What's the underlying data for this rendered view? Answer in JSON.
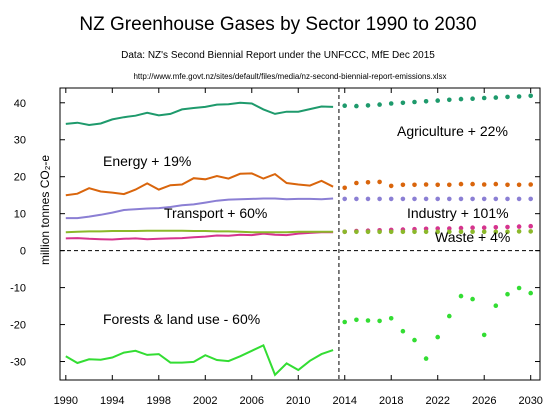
{
  "chart_data": {
    "type": "line",
    "title": "NZ Greenhouse Gases by Sector 1990 to 2030",
    "subtitle": "Data: NZ's Second Biennial Report under the UNFCCC, MfE Dec 2015",
    "source_url": "http://www.mfe.govt.nz/sites/default/files/media/nz-second-biennial-report-emissions.xlsx",
    "ylabel": "million tonnes CO₂-e",
    "xlabel": "",
    "ylim": [
      -35,
      44
    ],
    "xlim": [
      1989.5,
      2030.8
    ],
    "y_ticks": [
      40,
      30,
      20,
      10,
      0,
      -10,
      -20,
      -30
    ],
    "x_ticks": [
      1990,
      1994,
      1998,
      2002,
      2006,
      2010,
      2014,
      2018,
      2022,
      2026,
      2030
    ],
    "grid": false,
    "divider_year": 2013.5,
    "series": [
      {
        "name": "Agriculture + 22%",
        "color": "#1e9a6c",
        "hist_x": [
          1990,
          1991,
          1992,
          1993,
          1994,
          1995,
          1996,
          1997,
          1998,
          1999,
          2000,
          2001,
          2002,
          2003,
          2004,
          2005,
          2006,
          2007,
          2008,
          2009,
          2010,
          2011,
          2012,
          2013
        ],
        "hist_y": [
          34.3,
          34.6,
          34.0,
          34.4,
          35.5,
          36.1,
          36.5,
          37.3,
          36.6,
          37.0,
          38.2,
          38.6,
          38.9,
          39.5,
          39.6,
          40.0,
          39.8,
          38.2,
          37.0,
          37.6,
          37.6,
          38.3,
          39.0,
          38.9
        ],
        "proj_x": [
          2014,
          2015,
          2016,
          2017,
          2018,
          2019,
          2020,
          2021,
          2022,
          2023,
          2024,
          2025,
          2026,
          2027,
          2028,
          2029,
          2030
        ],
        "proj_y": [
          39.2,
          39.1,
          39.3,
          39.5,
          39.8,
          40.0,
          40.2,
          40.4,
          40.6,
          40.8,
          41.0,
          41.1,
          41.3,
          41.4,
          41.6,
          41.7,
          41.9
        ]
      },
      {
        "name": "Energy + 19%",
        "color": "#d9650c",
        "hist_x": [
          1990,
          1991,
          1992,
          1993,
          1994,
          1995,
          1996,
          1997,
          1998,
          1999,
          2000,
          2001,
          2002,
          2003,
          2004,
          2005,
          2006,
          2007,
          2008,
          2009,
          2010,
          2011,
          2012,
          2013
        ],
        "hist_y": [
          15.0,
          15.4,
          16.9,
          16.0,
          15.7,
          15.3,
          16.5,
          18.2,
          16.5,
          17.7,
          17.9,
          19.6,
          19.3,
          20.2,
          19.5,
          20.8,
          20.9,
          19.5,
          20.7,
          18.3,
          17.9,
          17.6,
          18.9,
          17.3
        ],
        "proj_x": [
          2014,
          2015,
          2016,
          2017,
          2018,
          2019,
          2020,
          2021,
          2022,
          2023,
          2024,
          2025,
          2026,
          2027,
          2028,
          2029,
          2030
        ],
        "proj_y": [
          17.0,
          18.3,
          18.5,
          18.6,
          17.5,
          17.8,
          17.8,
          17.9,
          17.8,
          17.8,
          18.0,
          18.0,
          17.9,
          18.0,
          17.8,
          17.8,
          17.9
        ]
      },
      {
        "name": "Transport + 60%",
        "color": "#8b7fd4",
        "hist_x": [
          1990,
          1991,
          1992,
          1993,
          1994,
          1995,
          1996,
          1997,
          1998,
          1999,
          2000,
          2001,
          2002,
          2003,
          2004,
          2005,
          2006,
          2007,
          2008,
          2009,
          2010,
          2011,
          2012,
          2013
        ],
        "hist_y": [
          8.8,
          8.8,
          9.2,
          9.7,
          10.3,
          11.0,
          11.2,
          11.4,
          11.5,
          11.8,
          12.3,
          12.5,
          13.0,
          13.5,
          13.8,
          13.9,
          14.0,
          14.1,
          14.1,
          13.9,
          14.0,
          14.0,
          13.9,
          14.1
        ],
        "proj_x": [
          2014,
          2015,
          2016,
          2017,
          2018,
          2019,
          2020,
          2021,
          2022,
          2023,
          2024,
          2025,
          2026,
          2027,
          2028,
          2029,
          2030
        ],
        "proj_y": [
          14.0,
          14.0,
          14.0,
          14.0,
          14.0,
          14.0,
          14.0,
          14.0,
          14.0,
          14.0,
          14.0,
          14.0,
          14.0,
          14.0,
          14.0,
          14.0,
          14.0
        ]
      },
      {
        "name": "Industry + 101%",
        "color": "#d6338f",
        "hist_x": [
          1990,
          1991,
          1992,
          1993,
          1994,
          1995,
          1996,
          1997,
          1998,
          1999,
          2000,
          2001,
          2002,
          2003,
          2004,
          2005,
          2006,
          2007,
          2008,
          2009,
          2010,
          2011,
          2012,
          2013
        ],
        "hist_y": [
          3.3,
          3.4,
          3.2,
          3.1,
          3.0,
          3.2,
          3.3,
          3.1,
          3.2,
          3.3,
          3.4,
          3.6,
          3.8,
          4.1,
          4.0,
          4.3,
          4.2,
          4.6,
          4.3,
          4.2,
          4.6,
          4.8,
          5.0,
          5.0
        ],
        "proj_x": [
          2014,
          2015,
          2016,
          2017,
          2018,
          2019,
          2020,
          2021,
          2022,
          2023,
          2024,
          2025,
          2026,
          2027,
          2028,
          2029,
          2030
        ],
        "proj_y": [
          5.1,
          5.3,
          5.4,
          5.5,
          5.6,
          5.7,
          5.8,
          5.9,
          6.0,
          6.0,
          6.1,
          6.2,
          6.2,
          6.3,
          6.4,
          6.5,
          6.6
        ]
      },
      {
        "name": "Waste + 4%",
        "color": "#8bb82a",
        "hist_x": [
          1990,
          1991,
          1992,
          1993,
          1994,
          1995,
          1996,
          1997,
          1998,
          1999,
          2000,
          2001,
          2002,
          2003,
          2004,
          2005,
          2006,
          2007,
          2008,
          2009,
          2010,
          2011,
          2012,
          2013
        ],
        "hist_y": [
          5.0,
          5.1,
          5.2,
          5.2,
          5.3,
          5.3,
          5.3,
          5.4,
          5.4,
          5.4,
          5.4,
          5.3,
          5.3,
          5.2,
          5.2,
          5.1,
          5.0,
          5.0,
          5.0,
          5.0,
          5.1,
          5.1,
          5.1,
          5.1
        ],
        "proj_x": [
          2014,
          2015,
          2016,
          2017,
          2018,
          2019,
          2020,
          2021,
          2022,
          2023,
          2024,
          2025,
          2026,
          2027,
          2028,
          2029,
          2030
        ],
        "proj_y": [
          5.1,
          5.1,
          5.1,
          5.1,
          5.1,
          5.1,
          5.1,
          5.1,
          5.1,
          5.1,
          5.1,
          5.1,
          5.1,
          5.1,
          5.1,
          5.2,
          5.2
        ]
      },
      {
        "name": "Forests & land use - 60%",
        "color": "#33dd33",
        "hist_x": [
          1990,
          1991,
          1992,
          1993,
          1994,
          1995,
          1996,
          1997,
          1998,
          1999,
          2000,
          2001,
          2002,
          2003,
          2004,
          2005,
          2006,
          2007,
          2008,
          2009,
          2010,
          2011,
          2012,
          2013
        ],
        "hist_y": [
          -28.6,
          -30.4,
          -29.4,
          -29.5,
          -28.9,
          -27.6,
          -27.1,
          -28.2,
          -28.0,
          -30.3,
          -30.3,
          -30.1,
          -28.3,
          -29.6,
          -29.9,
          -28.6,
          -27.1,
          -25.6,
          -33.6,
          -30.5,
          -32.3,
          -29.8,
          -28.0,
          -26.9
        ],
        "proj_x": [
          2014,
          2015,
          2016,
          2017,
          2018,
          2019,
          2020,
          2021,
          2022,
          2023,
          2024,
          2025,
          2026,
          2027,
          2028,
          2029,
          2030
        ],
        "proj_y": [
          -19.3,
          -18.7,
          -18.9,
          -19.0,
          -18.3,
          -21.8,
          -24.2,
          -29.2,
          -23.4,
          -17.7,
          -12.3,
          -13.1,
          -22.8,
          -14.9,
          -11.8,
          -10.1,
          -11.5
        ]
      }
    ]
  }
}
